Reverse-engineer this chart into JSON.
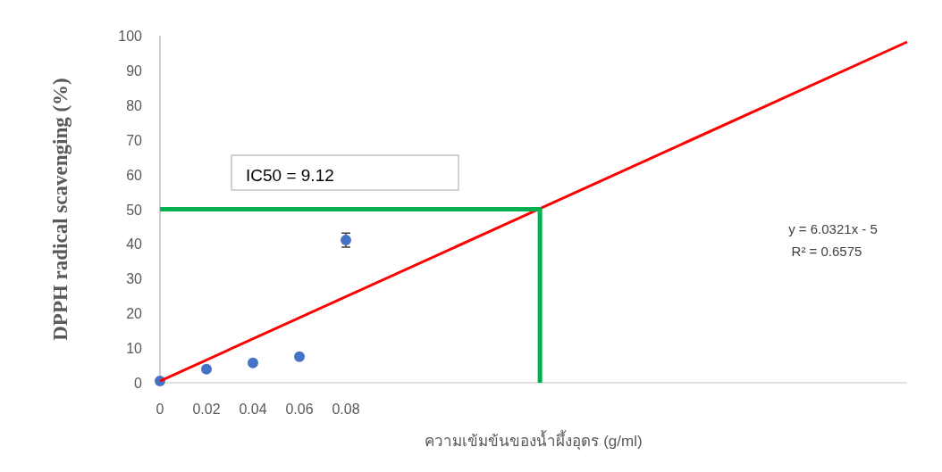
{
  "chart_data": {
    "type": "scatter",
    "xlabel": "ความเข้มข้นของน้ำผึ้งอุดร  (g/ml)",
    "ylabel": "DPPH radical scavenging (%)",
    "xlim": [
      0,
      0.3215
    ],
    "xticks": [
      0,
      0.02,
      0.04,
      0.06,
      0.08
    ],
    "ylim": [
      0,
      100
    ],
    "yticks": [
      0,
      10,
      20,
      30,
      40,
      50,
      60,
      70,
      80,
      90,
      100
    ],
    "annotations": [
      "IC50 = 9.12",
      "y = 6.0321x - 5",
      "R² = 0.6575"
    ],
    "series": [
      {
        "color": "#4472c4",
        "marker": "circle",
        "x": [
          0,
          0.02,
          0.04,
          0.06,
          0.08
        ],
        "values": [
          0.5,
          3.9,
          5.7,
          7.5,
          41.1
        ],
        "errors": [
          null,
          null,
          null,
          null,
          2
        ]
      },
      {
        "type": "line",
        "color": "#ff0000",
        "marker": "none",
        "x": [
          0,
          0.3215
        ],
        "values": [
          0.5,
          98.2
        ]
      },
      {
        "type": "line",
        "color": "#00b050",
        "marker": "none",
        "x": [
          0,
          0.1635,
          0.1635
        ],
        "values": [
          50,
          50,
          0
        ]
      }
    ]
  }
}
